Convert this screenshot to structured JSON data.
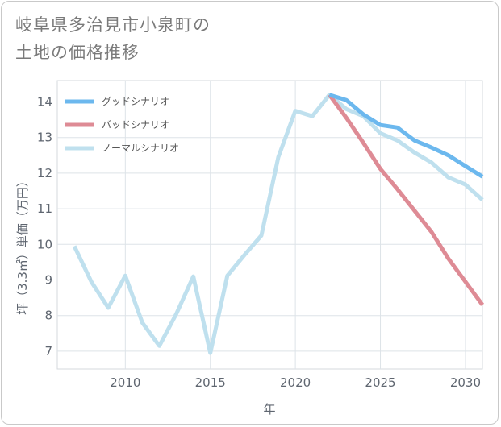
{
  "title_line1": "岐阜県多治見市小泉町の",
  "title_line2": "土地の価格推移",
  "chart_data": {
    "type": "line",
    "xlabel": "年",
    "ylabel": "坪（3.3㎡）単価（万円）",
    "xlim": [
      2006,
      2031
    ],
    "ylim": [
      6.5,
      14.6
    ],
    "xticks": [
      2010,
      2015,
      2020,
      2025,
      2030
    ],
    "yticks": [
      7,
      8,
      9,
      10,
      11,
      12,
      13,
      14
    ],
    "grid": true,
    "legend_position": "top-left",
    "series": [
      {
        "name": "グッドシナリオ",
        "color": "#6cb8ee",
        "x": [
          2022,
          2023,
          2024,
          2025,
          2026,
          2027,
          2028,
          2029,
          2030,
          2031
        ],
        "values": [
          14.2,
          14.05,
          13.65,
          13.35,
          13.28,
          12.92,
          12.72,
          12.5,
          12.2,
          11.9
        ]
      },
      {
        "name": "バッドシナリオ",
        "color": "#de8b95",
        "x": [
          2022,
          2023,
          2024,
          2025,
          2026,
          2027,
          2028,
          2029,
          2030,
          2031
        ],
        "values": [
          14.2,
          13.55,
          12.85,
          12.12,
          11.55,
          10.95,
          10.35,
          9.6,
          8.95,
          8.3
        ]
      },
      {
        "name": "ノーマルシナリオ",
        "color": "#bfe0ee",
        "x": [
          2007,
          2008,
          2009,
          2010,
          2011,
          2012,
          2013,
          2014,
          2015,
          2016,
          2017,
          2018,
          2019,
          2020,
          2021,
          2022,
          2023,
          2024,
          2025,
          2026,
          2027,
          2028,
          2029,
          2030,
          2031
        ],
        "values": [
          9.95,
          8.95,
          8.22,
          9.12,
          7.8,
          7.15,
          8.05,
          9.1,
          6.95,
          9.12,
          9.7,
          10.25,
          12.45,
          13.75,
          13.6,
          14.2,
          13.8,
          13.6,
          13.12,
          12.92,
          12.58,
          12.3,
          11.88,
          11.68,
          11.25
        ]
      }
    ]
  }
}
